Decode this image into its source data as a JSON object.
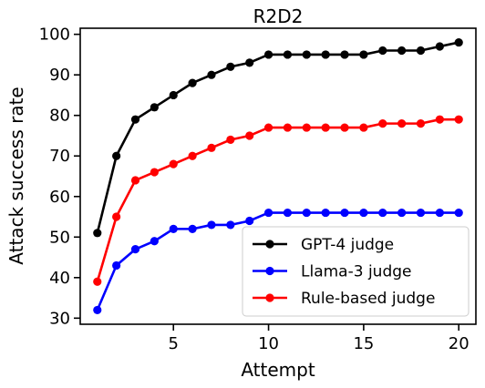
{
  "chart_data": {
    "type": "line",
    "title": "R2D2",
    "xlabel": "Attempt",
    "ylabel": "Attack success rate",
    "xlim": [
      0.1,
      20.9
    ],
    "ylim": [
      28.5,
      101.5
    ],
    "xticks": [
      5,
      10,
      15,
      20
    ],
    "yticks": [
      30,
      40,
      50,
      60,
      70,
      80,
      90,
      100
    ],
    "grid": false,
    "legend_position": "lower-right",
    "x": [
      1,
      2,
      3,
      4,
      5,
      6,
      7,
      8,
      9,
      10,
      11,
      12,
      13,
      14,
      15,
      16,
      17,
      18,
      19,
      20
    ],
    "series": [
      {
        "name": "GPT-4 judge",
        "color": "#000000",
        "values": [
          51,
          70,
          79,
          82,
          85,
          88,
          90,
          92,
          93,
          95,
          95,
          95,
          95,
          95,
          95,
          96,
          96,
          96,
          97,
          98
        ]
      },
      {
        "name": "Llama-3 judge",
        "color": "#0000ff",
        "values": [
          32,
          43,
          47,
          49,
          52,
          52,
          53,
          53,
          54,
          56,
          56,
          56,
          56,
          56,
          56,
          56,
          56,
          56,
          56,
          56
        ]
      },
      {
        "name": "Rule-based judge",
        "color": "#ff0000",
        "values": [
          39,
          55,
          64,
          66,
          68,
          70,
          72,
          74,
          75,
          77,
          77,
          77,
          77,
          77,
          77,
          78,
          78,
          78,
          79,
          79
        ]
      }
    ]
  }
}
